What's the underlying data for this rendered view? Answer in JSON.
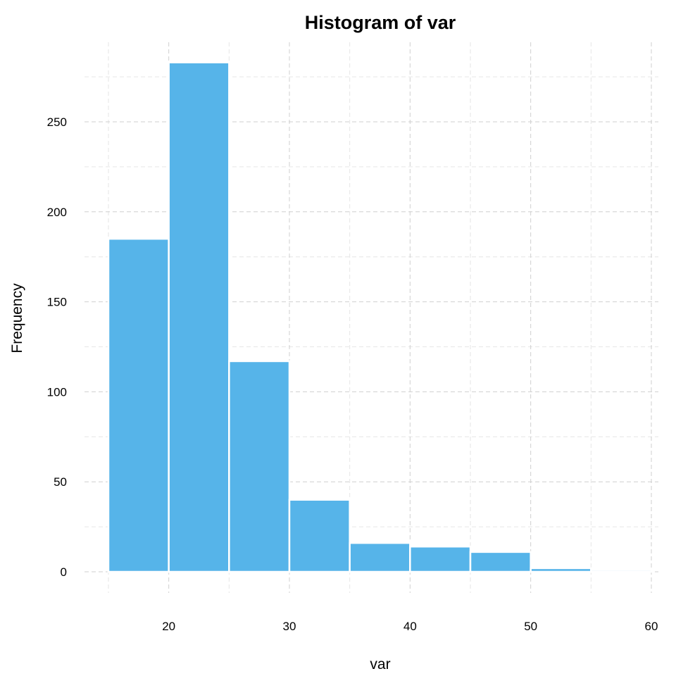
{
  "chart_data": {
    "type": "bar",
    "title": "Histogram of var",
    "xlabel": "var",
    "ylabel": "Frequency",
    "bin_edges": [
      15,
      20,
      25,
      30,
      35,
      40,
      45,
      50,
      55,
      60
    ],
    "values": [
      185,
      283,
      117,
      40,
      16,
      14,
      11,
      2,
      1
    ],
    "xlim": [
      15,
      60
    ],
    "ylim": [
      0,
      283
    ],
    "x_ticks": [
      20,
      30,
      40,
      50,
      60
    ],
    "y_ticks": [
      0,
      50,
      100,
      150,
      200,
      250
    ],
    "grid": true,
    "bar_color": "#56B4E9"
  }
}
